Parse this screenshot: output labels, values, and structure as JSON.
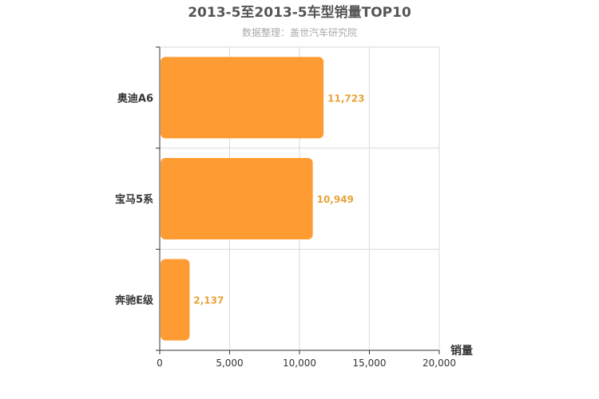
{
  "chart_data": {
    "type": "bar",
    "orientation": "horizontal",
    "title": "2013-5至2013-5车型销量TOP10",
    "subtitle": "数据整理：盖世汽车研究院",
    "categories": [
      "奥迪A6",
      "宝马5系",
      "奔驰E级"
    ],
    "values": [
      11723,
      10949,
      2137
    ],
    "data_labels": [
      "11,723",
      "10,949",
      "2,137"
    ],
    "xlabel": "销量",
    "ylabel": "",
    "xlim": [
      0,
      20000
    ],
    "x_ticks": [
      0,
      5000,
      10000,
      15000,
      20000
    ],
    "x_tick_labels": [
      "0",
      "5,000",
      "10,000",
      "15,000",
      "20,000"
    ],
    "grid": true,
    "legend": "none",
    "colors": {
      "bar": "#ff9b33",
      "data_label": "#e8a33a",
      "grid": "#d9d9d9",
      "axis": "#333333"
    }
  }
}
